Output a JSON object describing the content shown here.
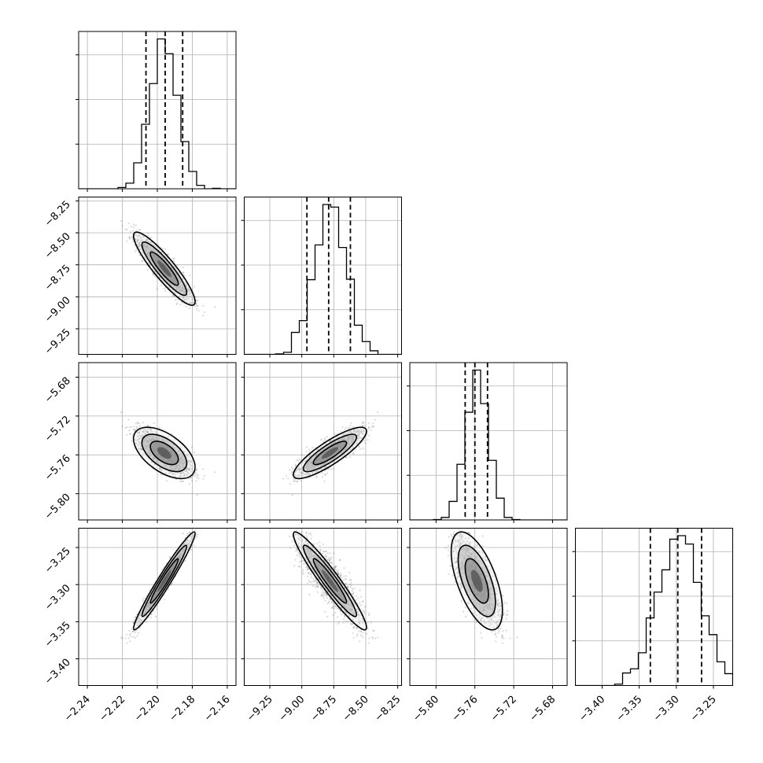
{
  "chart_data": {
    "type": "corner",
    "parameters": [
      {
        "range": [
          -2.245,
          -2.155
        ],
        "ticks": [
          "−2.24",
          "−2.22",
          "−2.20",
          "−2.18",
          "−2.16"
        ],
        "tick_values": [
          -2.24,
          -2.22,
          -2.2,
          -2.18,
          -2.16
        ],
        "mean": -2.196,
        "sd": 0.008,
        "quantiles": [
          -2.2065,
          -2.1955,
          -2.1855
        ]
      },
      {
        "range": [
          -9.45,
          -8.22
        ],
        "ticks": [
          "−9.25",
          "−9.00",
          "−8.75",
          "−8.50",
          "−8.25"
        ],
        "tick_values": [
          -9.25,
          -9.0,
          -8.75,
          -8.5,
          -8.25
        ],
        "mean": -8.78,
        "sd": 0.13,
        "quantiles": [
          -8.96,
          -8.79,
          -8.62
        ]
      },
      {
        "range": [
          -5.827,
          -5.665
        ],
        "ticks": [
          "−5.80",
          "−5.76",
          "−5.72",
          "−5.68"
        ],
        "tick_values": [
          -5.8,
          -5.76,
          -5.72,
          -5.68
        ],
        "mean": -5.758,
        "sd": 0.012,
        "quantiles": [
          -5.77,
          -5.76,
          -5.747
        ]
      },
      {
        "range": [
          -3.436,
          -3.224
        ],
        "ticks": [
          "−3.40",
          "−3.35",
          "−3.30",
          "−3.25"
        ],
        "tick_values": [
          -3.4,
          -3.35,
          -3.3,
          -3.25
        ],
        "mean": -3.295,
        "sd": 0.03,
        "quantiles": [
          -3.335,
          -3.298,
          -3.266
        ]
      }
    ],
    "pair_correlations": {
      "1,0": -0.9,
      "2,0": -0.55,
      "2,1": 0.85,
      "3,0": 0.97,
      "3,1": -0.95,
      "3,2": -0.6
    },
    "hist_bins": 20,
    "samples": 1500,
    "show_grid": true,
    "quantile_style": "dashed"
  }
}
